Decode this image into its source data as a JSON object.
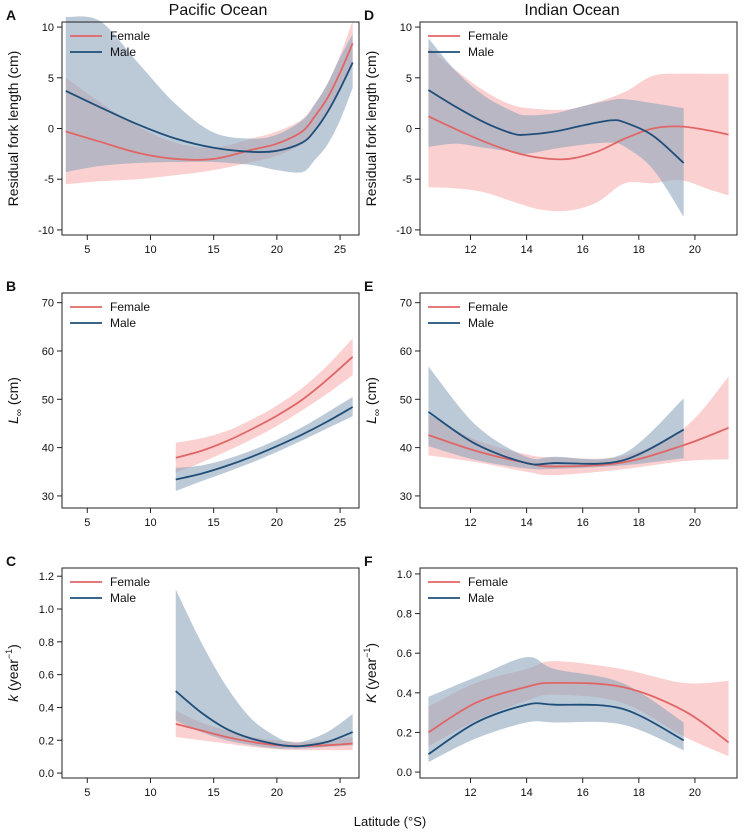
{
  "figure": {
    "column_titles": [
      "Pacific Ocean",
      "Indian Ocean"
    ],
    "xlabel": "Latitude (°S)"
  },
  "colors": {
    "female_line": "#e06666",
    "female_band": "#f8a9a9",
    "male_line": "#1f4e79",
    "male_band": "#8fa6be"
  },
  "chart_data": [
    {
      "panel": "A",
      "type": "line",
      "ocean": "Pacific Ocean",
      "ylabel": "Residual fork length (cm)",
      "xlim": [
        3,
        26.5
      ],
      "ylim": [
        -10.5,
        10.5
      ],
      "xticks": [
        5,
        10,
        15,
        20,
        25
      ],
      "yticks": [
        -10,
        -5,
        0,
        5,
        10
      ],
      "series": [
        {
          "name": "Female",
          "x": [
            3.3,
            6,
            9,
            12,
            15,
            18,
            20,
            22,
            23,
            24,
            25,
            26
          ],
          "y": [
            -0.3,
            -1.3,
            -2.4,
            -3.0,
            -3.0,
            -2.1,
            -1.5,
            -0.3,
            1.2,
            3.0,
            5.5,
            8.4
          ],
          "lower": [
            -5.5,
            -5.2,
            -5.0,
            -4.6,
            -4.1,
            -3.3,
            -2.7,
            -1.5,
            0.0,
            1.8,
            4.0,
            6.2
          ],
          "upper": [
            5.0,
            2.6,
            0.2,
            -1.4,
            -1.9,
            -1.0,
            -0.3,
            0.9,
            2.4,
            4.4,
            7.2,
            10.6
          ]
        },
        {
          "name": "Male",
          "x": [
            3.3,
            6,
            9,
            12,
            15,
            18,
            20,
            22,
            23,
            24,
            25,
            26
          ],
          "y": [
            3.7,
            2.1,
            0.4,
            -1.0,
            -1.9,
            -2.3,
            -2.2,
            -1.4,
            -0.2,
            1.6,
            3.9,
            6.5
          ],
          "lower": [
            -4.3,
            -3.7,
            -3.4,
            -3.3,
            -3.3,
            -3.6,
            -4.1,
            -4.3,
            -3.1,
            -1.6,
            0.8,
            4.0
          ],
          "upper": [
            11.0,
            10.6,
            6.5,
            2.4,
            -0.4,
            -1.0,
            -0.6,
            0.8,
            2.4,
            4.4,
            7.0,
            9.3
          ]
        }
      ]
    },
    {
      "panel": "D",
      "type": "line",
      "ocean": "Indian Ocean",
      "ylabel": "Residual fork length (cm)",
      "xlim": [
        10.2,
        21.5
      ],
      "ylim": [
        -10.5,
        10.5
      ],
      "xticks": [
        12,
        14,
        16,
        18,
        20
      ],
      "yticks": [
        -10,
        -5,
        0,
        5,
        10
      ],
      "series": [
        {
          "name": "Female",
          "x": [
            10.5,
            11.5,
            12.5,
            13.5,
            14.5,
            15.5,
            16.5,
            17.5,
            18.5,
            19.5,
            20.5,
            21.2
          ],
          "y": [
            1.2,
            -0.1,
            -1.3,
            -2.3,
            -2.9,
            -3.0,
            -2.3,
            -1.0,
            0.0,
            0.2,
            -0.2,
            -0.6
          ],
          "lower": [
            -5.8,
            -5.9,
            -6.3,
            -7.2,
            -8.0,
            -8.1,
            -7.3,
            -5.4,
            -5.4,
            -5.1,
            -6.0,
            -6.6
          ],
          "upper": [
            8.0,
            5.7,
            3.7,
            2.3,
            1.9,
            1.9,
            2.6,
            3.6,
            5.2,
            5.4,
            5.4,
            5.4
          ]
        },
        {
          "name": "Male",
          "x": [
            10.5,
            11.5,
            12.5,
            13.5,
            14,
            15,
            16,
            17,
            17.5,
            18.5,
            19.6
          ],
          "y": [
            3.8,
            2.1,
            0.6,
            -0.5,
            -0.6,
            -0.3,
            0.3,
            0.8,
            0.6,
            -0.7,
            -3.4
          ],
          "lower": [
            -1.8,
            -1.5,
            -1.9,
            -2.3,
            -2.5,
            -2.0,
            -1.6,
            -1.4,
            -1.8,
            -4.0,
            -8.7
          ],
          "upper": [
            8.9,
            5.6,
            3.2,
            1.7,
            1.3,
            1.5,
            2.2,
            2.8,
            2.9,
            2.5,
            2.0
          ]
        }
      ]
    },
    {
      "panel": "B",
      "type": "line",
      "ocean": "Pacific Ocean",
      "ylabel": "L∞ (cm)",
      "ylabel_main": "L",
      "ylabel_sub": "∞",
      "ylabel_unit": " (cm)",
      "xlim": [
        3,
        26.5
      ],
      "ylim": [
        27.5,
        72
      ],
      "xticks": [
        5,
        10,
        15,
        20,
        25
      ],
      "yticks": [
        30,
        40,
        50,
        60,
        70
      ],
      "series": [
        {
          "name": "Female",
          "x": [
            12,
            14,
            16,
            18,
            20,
            22,
            24,
            26
          ],
          "y": [
            37.9,
            39.3,
            41.3,
            43.8,
            46.6,
            49.9,
            54.1,
            58.8
          ],
          "lower": [
            34.8,
            36.9,
            39.2,
            41.7,
            44.5,
            47.7,
            51.2,
            55.0
          ],
          "upper": [
            41.0,
            41.9,
            43.4,
            45.8,
            48.7,
            52.3,
            57.0,
            62.6
          ]
        },
        {
          "name": "Male",
          "x": [
            12,
            14,
            16,
            18,
            20,
            22,
            24,
            26
          ],
          "y": [
            33.4,
            34.6,
            36.2,
            38.1,
            40.3,
            42.7,
            45.4,
            48.4
          ],
          "lower": [
            31.0,
            33.0,
            34.9,
            36.9,
            39.1,
            41.5,
            44.0,
            46.5
          ],
          "upper": [
            35.8,
            36.3,
            37.6,
            39.4,
            41.6,
            44.2,
            47.3,
            50.5
          ]
        }
      ]
    },
    {
      "panel": "E",
      "type": "line",
      "ocean": "Indian Ocean",
      "ylabel": "L∞ (cm)",
      "ylabel_main": "L",
      "ylabel_sub": "∞",
      "ylabel_unit": " (cm)",
      "xlim": [
        10.2,
        21.5
      ],
      "ylim": [
        27.5,
        72
      ],
      "xticks": [
        12,
        14,
        16,
        18,
        20
      ],
      "yticks": [
        30,
        40,
        50,
        60,
        70
      ],
      "series": [
        {
          "name": "Female",
          "x": [
            10.5,
            12.2,
            14,
            15,
            17.4,
            19.6,
            21.2
          ],
          "y": [
            42.6,
            39.3,
            36.8,
            36.1,
            36.9,
            40.5,
            44.1
          ],
          "lower": [
            38.4,
            37.0,
            35.0,
            34.3,
            35.5,
            37.2,
            37.6
          ],
          "upper": [
            46.8,
            41.6,
            38.6,
            38.0,
            38.2,
            44.0,
            54.7
          ]
        },
        {
          "name": "Male",
          "x": [
            10.5,
            12.2,
            14,
            15,
            17.4,
            19.6
          ],
          "y": [
            47.4,
            40.7,
            36.8,
            36.8,
            37.3,
            43.7
          ],
          "lower": [
            40.3,
            37.4,
            35.7,
            35.6,
            36.3,
            37.8
          ],
          "upper": [
            56.8,
            44.6,
            38.1,
            38.1,
            38.6,
            50.2
          ]
        }
      ]
    },
    {
      "panel": "C",
      "type": "line",
      "ocean": "Pacific Ocean",
      "ylabel": "k (year⁻¹)",
      "ylabel_main": "k",
      "ylabel_unit": " (year",
      "ylabel_sup": "−1",
      "ylabel_close": ")",
      "xlim": [
        3,
        26.5
      ],
      "ylim": [
        -0.03,
        1.25
      ],
      "xticks": [
        5,
        10,
        15,
        20,
        25
      ],
      "yticks": [
        0.0,
        0.2,
        0.4,
        0.6,
        0.8,
        1.0,
        1.2
      ],
      "series": [
        {
          "name": "Female",
          "x": [
            12,
            14,
            16,
            18,
            20,
            22,
            24,
            26
          ],
          "y": [
            0.3,
            0.26,
            0.22,
            0.19,
            0.17,
            0.165,
            0.17,
            0.18
          ],
          "lower": [
            0.22,
            0.2,
            0.18,
            0.16,
            0.145,
            0.14,
            0.14,
            0.14
          ],
          "upper": [
            0.38,
            0.31,
            0.26,
            0.22,
            0.2,
            0.19,
            0.2,
            0.22
          ]
        },
        {
          "name": "Male",
          "x": [
            12,
            14,
            16,
            18,
            20,
            21,
            22,
            24,
            26
          ],
          "y": [
            0.5,
            0.37,
            0.27,
            0.21,
            0.175,
            0.165,
            0.165,
            0.19,
            0.25
          ],
          "lower": [
            0.32,
            0.25,
            0.2,
            0.17,
            0.15,
            0.15,
            0.15,
            0.16,
            0.17
          ],
          "upper": [
            1.12,
            0.8,
            0.53,
            0.33,
            0.22,
            0.19,
            0.19,
            0.25,
            0.36
          ]
        }
      ]
    },
    {
      "panel": "F",
      "type": "line",
      "ocean": "Indian Ocean",
      "ylabel": "K (year⁻¹)",
      "ylabel_main": "K",
      "ylabel_unit": " (year",
      "ylabel_sup": "−1",
      "ylabel_close": ")",
      "xlim": [
        10.2,
        21.5
      ],
      "ylim": [
        -0.03,
        1.03
      ],
      "xticks": [
        12,
        14,
        16,
        18,
        20
      ],
      "yticks": [
        0.0,
        0.2,
        0.4,
        0.6,
        0.8,
        1.0
      ],
      "series": [
        {
          "name": "Female",
          "x": [
            10.5,
            12.2,
            14,
            15,
            17.4,
            19.6,
            21.2
          ],
          "y": [
            0.2,
            0.35,
            0.43,
            0.45,
            0.43,
            0.31,
            0.15
          ],
          "lower": [
            0.13,
            0.26,
            0.36,
            0.39,
            0.35,
            0.18,
            0.08
          ],
          "upper": [
            0.33,
            0.45,
            0.52,
            0.56,
            0.52,
            0.45,
            0.46
          ]
        },
        {
          "name": "Male",
          "x": [
            10.5,
            12.2,
            14,
            15,
            17.4,
            19.6
          ],
          "y": [
            0.09,
            0.25,
            0.34,
            0.34,
            0.32,
            0.16
          ],
          "lower": [
            0.05,
            0.17,
            0.25,
            0.25,
            0.24,
            0.11
          ],
          "upper": [
            0.38,
            0.48,
            0.58,
            0.52,
            0.45,
            0.25
          ]
        }
      ]
    }
  ]
}
